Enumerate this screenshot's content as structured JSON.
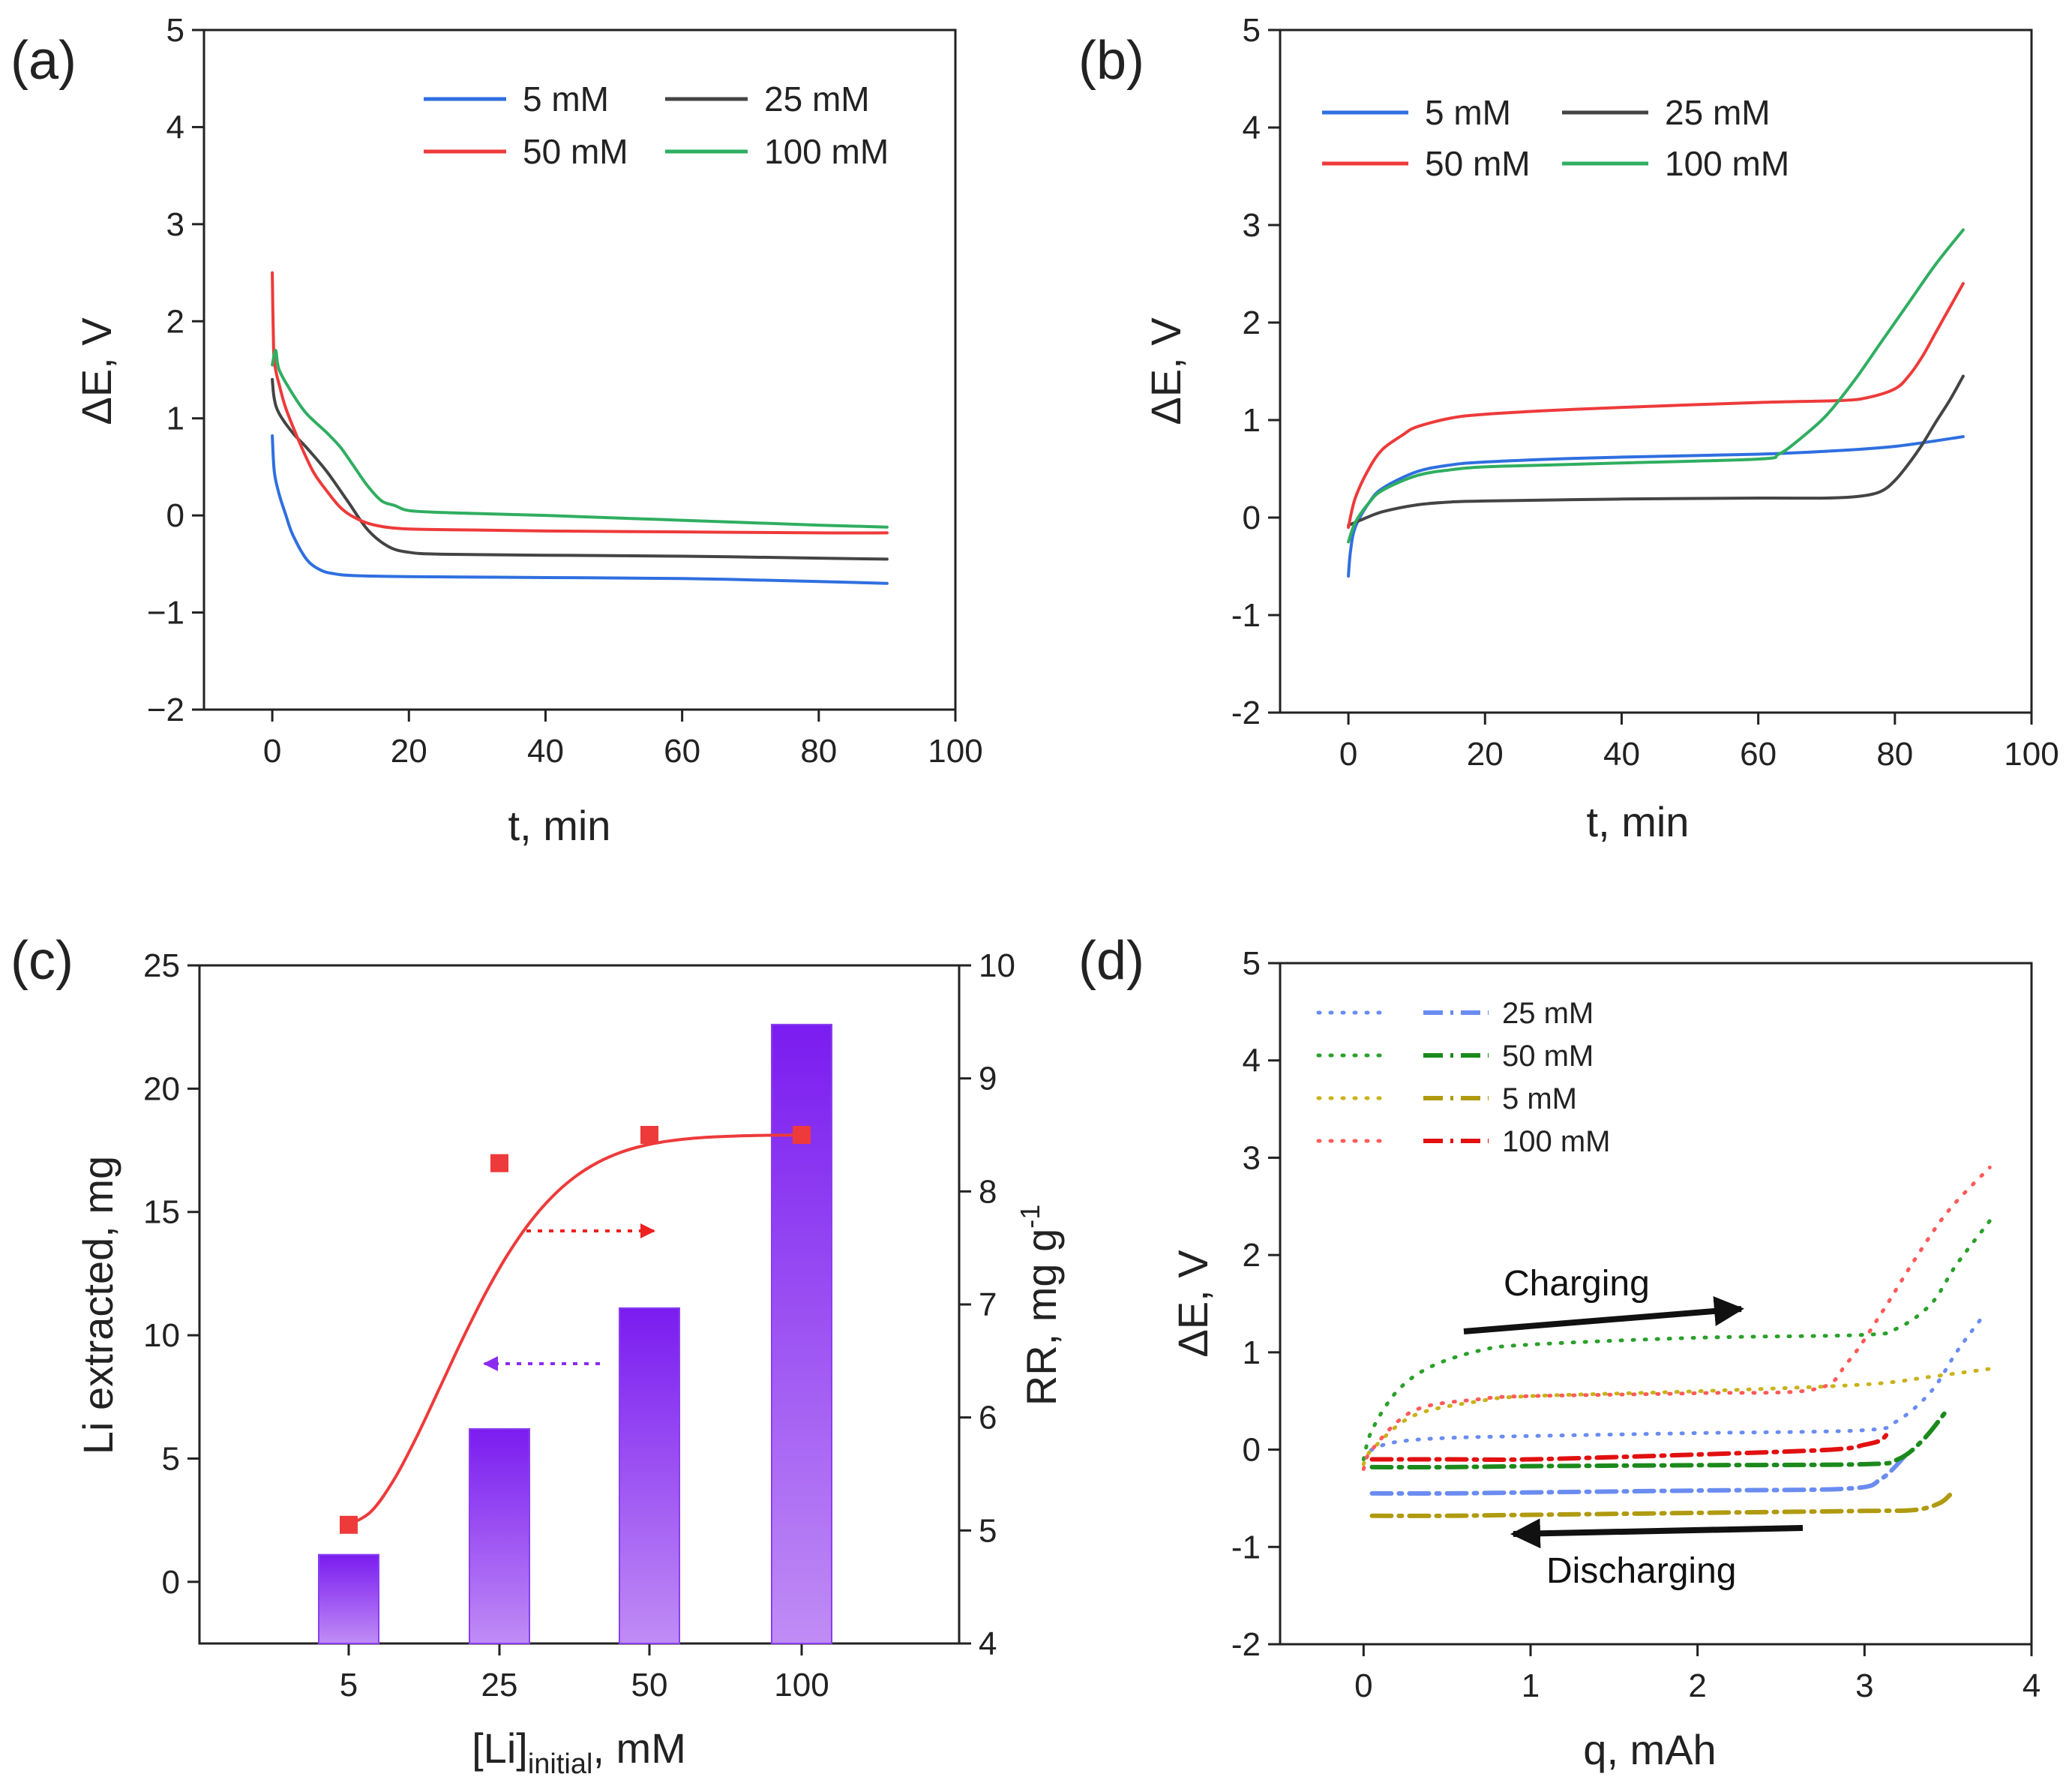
{
  "figure_title": "",
  "chart_data": [
    {
      "panel": "(a)",
      "type": "line",
      "title": "",
      "xlabel": "t, min",
      "ylabel": "ΔE, V",
      "xlim": [
        -10,
        100
      ],
      "ylim": [
        -2,
        5
      ],
      "xticks": [
        0,
        20,
        40,
        60,
        80,
        100
      ],
      "yticks": [
        -2,
        -1,
        0,
        1,
        2,
        3,
        4,
        5
      ],
      "xtick_labels": [
        "0",
        "20",
        "40",
        "60",
        "80",
        "100"
      ],
      "ytick_labels": [
        "−2",
        "−1",
        "0",
        "1",
        "2",
        "3",
        "4",
        "5"
      ],
      "legend_position": "top-right",
      "series": [
        {
          "name": "5 mM",
          "color": "#2f6fe0",
          "x": [
            0,
            0.3,
            1,
            2,
            3,
            5,
            7,
            9,
            12,
            20,
            40,
            60,
            80,
            90
          ],
          "y": [
            0.82,
            0.45,
            0.22,
            0.0,
            -0.2,
            -0.45,
            -0.56,
            -0.6,
            -0.62,
            -0.63,
            -0.64,
            -0.65,
            -0.68,
            -0.7
          ]
        },
        {
          "name": "25 mM",
          "color": "#444444",
          "x": [
            0,
            0.3,
            1,
            3,
            5,
            8,
            11,
            14,
            17,
            20,
            25,
            40,
            60,
            80,
            90
          ],
          "y": [
            1.4,
            1.2,
            1.05,
            0.85,
            0.7,
            0.45,
            0.15,
            -0.15,
            -0.32,
            -0.38,
            -0.4,
            -0.41,
            -0.42,
            -0.44,
            -0.45
          ]
        },
        {
          "name": "50 mM",
          "color": "#ee3a3a",
          "x": [
            0,
            0.2,
            0.5,
            1,
            2,
            4,
            6,
            8,
            10,
            12,
            15,
            20,
            30,
            40,
            60,
            80,
            90
          ],
          "y": [
            2.5,
            1.7,
            1.5,
            1.35,
            1.1,
            0.75,
            0.45,
            0.25,
            0.08,
            -0.02,
            -0.1,
            -0.14,
            -0.15,
            -0.16,
            -0.17,
            -0.18,
            -0.18
          ]
        },
        {
          "name": "100 mM",
          "color": "#2fae60",
          "x": [
            0,
            0.5,
            1,
            3,
            5,
            8,
            10,
            12,
            14,
            16,
            18,
            20,
            25,
            30,
            40,
            60,
            80,
            90
          ],
          "y": [
            1.55,
            1.7,
            1.5,
            1.25,
            1.05,
            0.85,
            0.7,
            0.5,
            0.3,
            0.15,
            0.1,
            0.05,
            0.03,
            0.02,
            0.0,
            -0.05,
            -0.1,
            -0.12
          ]
        }
      ]
    },
    {
      "panel": "(b)",
      "type": "line",
      "title": "",
      "xlabel": "t, min",
      "ylabel": "ΔE, V",
      "xlim": [
        -10,
        100
      ],
      "ylim": [
        -2,
        5
      ],
      "xticks": [
        0,
        20,
        40,
        60,
        80,
        100
      ],
      "yticks": [
        -2,
        -1,
        0,
        1,
        2,
        3,
        4,
        5
      ],
      "xtick_labels": [
        "0",
        "20",
        "40",
        "60",
        "80",
        "100"
      ],
      "ytick_labels": [
        "-2",
        "-1",
        "0",
        "1",
        "2",
        "3",
        "4",
        "5"
      ],
      "legend_position": "top-left",
      "series": [
        {
          "name": "5 mM",
          "color": "#2f6fe0",
          "x": [
            0,
            0.3,
            1,
            3,
            5,
            10,
            15,
            20,
            30,
            40,
            60,
            70,
            80,
            90
          ],
          "y": [
            -0.6,
            -0.35,
            -0.1,
            0.15,
            0.3,
            0.47,
            0.54,
            0.57,
            0.6,
            0.62,
            0.65,
            0.68,
            0.73,
            0.83
          ]
        },
        {
          "name": "25 mM",
          "color": "#444444",
          "x": [
            0,
            2,
            5,
            10,
            15,
            20,
            40,
            60,
            70,
            75,
            78,
            80,
            82,
            84,
            86,
            88,
            90
          ],
          "y": [
            -0.08,
            -0.02,
            0.06,
            0.13,
            0.16,
            0.17,
            0.19,
            0.2,
            0.2,
            0.22,
            0.27,
            0.38,
            0.55,
            0.75,
            0.98,
            1.2,
            1.45
          ]
        },
        {
          "name": "50 mM",
          "color": "#ee3a3a",
          "x": [
            0,
            1,
            3,
            5,
            8,
            10,
            15,
            20,
            30,
            40,
            60,
            72,
            76,
            80,
            82,
            84,
            86,
            88,
            90
          ],
          "y": [
            -0.1,
            0.2,
            0.5,
            0.7,
            0.85,
            0.93,
            1.02,
            1.06,
            1.1,
            1.13,
            1.18,
            1.2,
            1.23,
            1.32,
            1.45,
            1.65,
            1.9,
            2.15,
            2.4
          ]
        },
        {
          "name": "100 mM",
          "color": "#2fae60",
          "x": [
            0,
            1,
            3,
            5,
            10,
            15,
            20,
            30,
            40,
            60,
            63,
            66,
            70,
            74,
            78,
            82,
            86,
            90
          ],
          "y": [
            -0.25,
            -0.05,
            0.15,
            0.28,
            0.43,
            0.49,
            0.52,
            0.54,
            0.56,
            0.6,
            0.65,
            0.8,
            1.05,
            1.4,
            1.8,
            2.2,
            2.6,
            2.95
          ]
        }
      ]
    },
    {
      "panel": "(c)",
      "type": "bar",
      "title": "",
      "xlabel": "[Li]",
      "xlabel_subscript": "initial",
      "xlabel_suffix": ", mM",
      "ylabel": "Li extracted, mg",
      "y2label": "RR, mg g",
      "y2label_superscript": "-1",
      "categories": [
        "5",
        "25",
        "50",
        "100"
      ],
      "ylim": [
        -2.5,
        25
      ],
      "yticks": [
        0,
        5,
        10,
        15,
        20,
        25
      ],
      "ytick_labels": [
        "0",
        "5",
        "10",
        "15",
        "20",
        "25"
      ],
      "y2lim": [
        4,
        10
      ],
      "y2ticks": [
        4,
        5,
        6,
        7,
        8,
        9,
        10
      ],
      "y2tick_labels": [
        "4",
        "5",
        "6",
        "7",
        "8",
        "9",
        "10"
      ],
      "bar_color_top": "#7a1cf0",
      "bar_color_bottom": "#c08cf5",
      "series": [
        {
          "name": "Li extracted",
          "axis": "left",
          "type": "bar",
          "values": [
            1.1,
            6.2,
            11.1,
            22.6
          ]
        },
        {
          "name": "RR",
          "axis": "right",
          "type": "scatter+fit",
          "color": "#ee3a3a",
          "values": [
            5.05,
            8.25,
            8.5,
            8.5
          ]
        }
      ]
    },
    {
      "panel": "(d)",
      "type": "line",
      "title": "",
      "xlabel": "q, mAh",
      "ylabel": "ΔE, V",
      "xlim": [
        -0.5,
        4
      ],
      "ylim": [
        -2,
        5
      ],
      "xticks": [
        0,
        1,
        2,
        3,
        4
      ],
      "yticks": [
        -2,
        -1,
        0,
        1,
        2,
        3,
        4,
        5
      ],
      "xtick_labels": [
        "0",
        "1",
        "2",
        "3",
        "4"
      ],
      "ytick_labels": [
        "-2",
        "-1",
        "0",
        "1",
        "2",
        "3",
        "4",
        "5"
      ],
      "legend_position": "top-left",
      "annotations": [
        "Charging",
        "Discharging"
      ],
      "series": [
        {
          "name": "25 mM",
          "mode": "charging",
          "color": "#6a8cf0",
          "dash": "dot",
          "x": [
            0,
            0.05,
            0.2,
            0.5,
            1,
            2,
            3,
            3.2,
            3.4,
            3.55,
            3.7
          ],
          "y": [
            -0.1,
            0.0,
            0.08,
            0.12,
            0.14,
            0.17,
            0.2,
            0.3,
            0.6,
            1.0,
            1.35
          ]
        },
        {
          "name": "25 mM",
          "mode": "discharging",
          "color": "#6a8cf0",
          "dash": "dashdot",
          "x": [
            0.05,
            0.5,
            1,
            2,
            2.9,
            3.1,
            3.25
          ],
          "y": [
            -0.45,
            -0.45,
            -0.44,
            -0.42,
            -0.4,
            -0.3,
            -0.05
          ]
        },
        {
          "name": "50 mM",
          "mode": "charging",
          "color": "#2aa02a",
          "dash": "dot",
          "x": [
            0,
            0.05,
            0.2,
            0.4,
            0.7,
            1,
            2,
            3,
            3.2,
            3.4,
            3.55,
            3.75
          ],
          "y": [
            -0.1,
            0.2,
            0.6,
            0.85,
            1.02,
            1.08,
            1.15,
            1.18,
            1.25,
            1.5,
            1.9,
            2.35
          ]
        },
        {
          "name": "50 mM",
          "mode": "discharging",
          "color": "#1b8a1b",
          "dash": "dashdot",
          "x": [
            0.05,
            0.5,
            1,
            2,
            3,
            3.2,
            3.35,
            3.5
          ],
          "y": [
            -0.18,
            -0.18,
            -0.17,
            -0.16,
            -0.15,
            -0.1,
            0.1,
            0.42
          ]
        },
        {
          "name": "5 mM",
          "mode": "charging",
          "color": "#c9b21a",
          "dash": "dot",
          "x": [
            0,
            0.05,
            0.3,
            0.7,
            1,
            2,
            3,
            3.4,
            3.75
          ],
          "y": [
            -0.15,
            0.0,
            0.35,
            0.5,
            0.55,
            0.6,
            0.67,
            0.75,
            0.83
          ]
        },
        {
          "name": "5 mM",
          "mode": "discharging",
          "color": "#b09a10",
          "dash": "dashdot",
          "x": [
            0.05,
            0.5,
            1,
            2,
            3,
            3.3,
            3.45,
            3.52
          ],
          "y": [
            -0.68,
            -0.68,
            -0.67,
            -0.65,
            -0.63,
            -0.62,
            -0.55,
            -0.45
          ]
        },
        {
          "name": "100 mM",
          "mode": "charging",
          "color": "#ff5a5a",
          "dash": "dot",
          "x": [
            0,
            0.05,
            0.3,
            0.7,
            1,
            2,
            2.7,
            2.9,
            3.1,
            3.3,
            3.5,
            3.75
          ],
          "y": [
            -0.2,
            0.0,
            0.4,
            0.52,
            0.55,
            0.58,
            0.62,
            0.9,
            1.4,
            1.95,
            2.45,
            2.9
          ]
        },
        {
          "name": "100 mM",
          "mode": "discharging",
          "color": "#e21010",
          "dash": "dashdot",
          "x": [
            0.05,
            0.5,
            1,
            2,
            2.8,
            3.0,
            3.1,
            3.15
          ],
          "y": [
            -0.1,
            -0.1,
            -0.1,
            -0.05,
            0.0,
            0.05,
            0.1,
            0.2
          ]
        }
      ]
    }
  ]
}
